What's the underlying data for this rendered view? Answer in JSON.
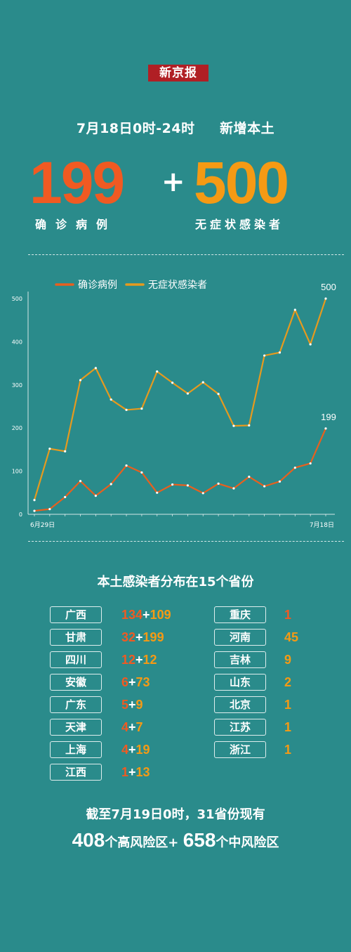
{
  "header": {
    "logo": "新京报",
    "headline": "7月18日0时-24时     新增本土",
    "confirmed_number": "199",
    "plus": "+",
    "asymptomatic_number": "500",
    "confirmed_label": "确诊病例",
    "asymptomatic_label": "无症状感染者"
  },
  "colors": {
    "background": "#2a8b8b",
    "confirmed": "#e8601e",
    "asymptomatic": "#e69a1e",
    "logo_bg": "#b01f24"
  },
  "chart_data": {
    "type": "line",
    "x": [
      "6月29日",
      "6月30日",
      "7月1日",
      "7月2日",
      "7月3日",
      "7月4日",
      "7月5日",
      "7月6日",
      "7月7日",
      "7月8日",
      "7月9日",
      "7月10日",
      "7月11日",
      "7月12日",
      "7月13日",
      "7月14日",
      "7月15日",
      "7月16日",
      "7月17日",
      "7月18日"
    ],
    "x_tick_labels": [
      "6月29日",
      "7月18日"
    ],
    "series": [
      {
        "name": "确诊病例",
        "color": "#e8601e",
        "values": [
          8,
          12,
          40,
          77,
          43,
          70,
          113,
          97,
          50,
          69,
          67,
          49,
          71,
          60,
          87,
          65,
          76,
          108,
          118,
          199
        ],
        "end_label": "199"
      },
      {
        "name": "无症状感染者",
        "color": "#e69a1e",
        "values": [
          33,
          152,
          146,
          311,
          339,
          266,
          242,
          245,
          331,
          305,
          280,
          306,
          279,
          205,
          206,
          368,
          375,
          474,
          394,
          500
        ],
        "end_label": "500"
      }
    ],
    "ylim": [
      0,
      500
    ],
    "yticks": [
      "0",
      "100",
      "200",
      "300",
      "400",
      "500"
    ],
    "legend_position": "top-left",
    "grid": false
  },
  "distribution": {
    "title": "本土感染者分布在15个省份",
    "left": [
      {
        "province": "广西",
        "confirmed": "134",
        "plus": "+",
        "asym": "109"
      },
      {
        "province": "甘肃",
        "confirmed": "32",
        "plus": "+",
        "asym": "199"
      },
      {
        "province": "四川",
        "confirmed": "12",
        "plus": "+",
        "asym": "12"
      },
      {
        "province": "安徽",
        "confirmed": "6",
        "plus": "+",
        "asym": "73"
      },
      {
        "province": "广东",
        "confirmed": "5",
        "plus": "+",
        "asym": "9"
      },
      {
        "province": "天津",
        "confirmed": "4",
        "plus": "+",
        "asym": "7"
      },
      {
        "province": "上海",
        "confirmed": "4",
        "plus": "+",
        "asym": "19"
      },
      {
        "province": "江西",
        "confirmed": "1",
        "plus": "+",
        "asym": "13"
      }
    ],
    "right": [
      {
        "province": "重庆",
        "value": "1",
        "kind": "confirmed"
      },
      {
        "province": "河南",
        "value": "45",
        "kind": "asym"
      },
      {
        "province": "吉林",
        "value": "9",
        "kind": "asym"
      },
      {
        "province": "山东",
        "value": "2",
        "kind": "asym"
      },
      {
        "province": "北京",
        "value": "1",
        "kind": "asym"
      },
      {
        "province": "江苏",
        "value": "1",
        "kind": "asym"
      },
      {
        "province": "浙江",
        "value": "1",
        "kind": "asym"
      }
    ]
  },
  "footer": {
    "line1": "截至7月19日0时，31省份现有",
    "high_risk_num": "408",
    "high_risk_text": "个高风险区+",
    "mid_risk_num": "658",
    "mid_risk_text": "个中风险区"
  }
}
